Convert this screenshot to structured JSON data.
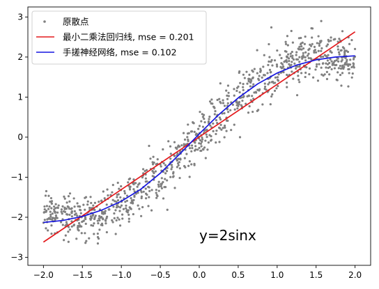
{
  "chart_data": {
    "type": "scatter",
    "xlim": [
      -2.2,
      2.2
    ],
    "ylim": [
      -3.2,
      3.25
    ],
    "x_ticks": [
      -2.0,
      -1.5,
      -1.0,
      -0.5,
      0.0,
      0.5,
      1.0,
      1.5,
      2.0
    ],
    "x_tick_labels": [
      "−2.0",
      "−1.5",
      "−1.0",
      "−0.5",
      "0.0",
      "0.5",
      "1.0",
      "1.5",
      "2.0"
    ],
    "y_ticks": [
      -3,
      -2,
      -1,
      0,
      1,
      2,
      3
    ],
    "y_tick_labels": [
      "−3",
      "−2",
      "−1",
      "0",
      "1",
      "2",
      "3"
    ],
    "grid": false,
    "legend_position": "top-left",
    "annotation": {
      "text": "y=2sinx",
      "x": 0.0,
      "y": -2.45
    },
    "series": [
      {
        "name": "原散点",
        "kind": "scatter",
        "color": "#808080",
        "generator": {
          "n": 1000,
          "x_range": [
            -2.0,
            2.0
          ],
          "function": "2*sin(x)",
          "noise_sd": 0.3
        }
      },
      {
        "name": "最小二乘法回归线, mse = 0.201",
        "kind": "line",
        "color": "#e3191c",
        "x": [
          -2.0,
          2.0
        ],
        "y": [
          -2.62,
          2.63
        ]
      },
      {
        "name": "手搓神经网络, mse = 0.102",
        "kind": "line",
        "color": "#1515e0",
        "x": [
          -2.0,
          -1.75,
          -1.5,
          -1.25,
          -1.0,
          -0.75,
          -0.5,
          -0.25,
          0.0,
          0.25,
          0.5,
          0.75,
          1.0,
          1.25,
          1.5,
          1.75,
          2.0
        ],
        "y": [
          -2.13,
          -2.08,
          -1.98,
          -1.82,
          -1.6,
          -1.3,
          -0.9,
          -0.42,
          0.08,
          0.56,
          0.98,
          1.33,
          1.6,
          1.8,
          1.93,
          2.0,
          2.03
        ]
      }
    ]
  }
}
